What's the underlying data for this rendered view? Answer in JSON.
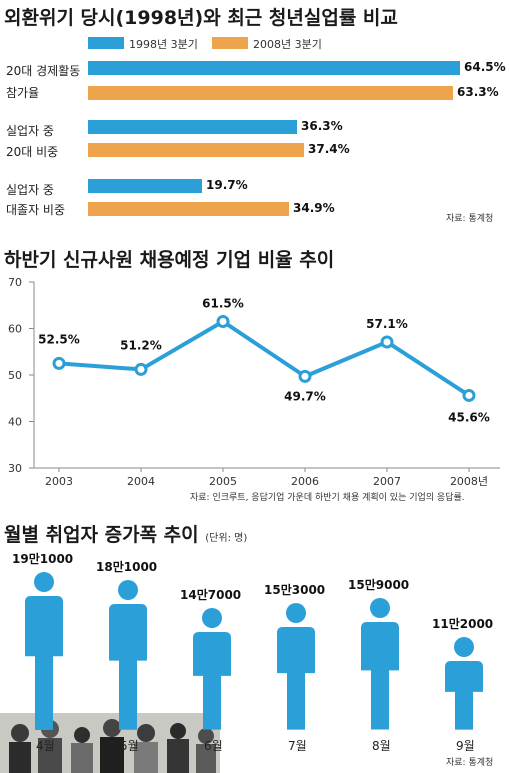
{
  "colors": {
    "series1998": "#2a9fd8",
    "series2008": "#eda44d",
    "line": "#2a9fd8",
    "person": "#2a9fd8"
  },
  "chart_data": [
    {
      "type": "bar",
      "orientation": "horizontal",
      "title": "외환위기 당시(1998년)와 최근 청년실업률 비교",
      "legend": [
        "1998년 3분기",
        "2008년 3분기"
      ],
      "categories": [
        {
          "line1": "20대 경제활동",
          "line2": "참가율"
        },
        {
          "line1": "실업자 중",
          "line2": "20대 비중"
        },
        {
          "line1": "실업자 중",
          "line2": "대졸자 비중"
        }
      ],
      "series": [
        {
          "name": "1998년 3분기",
          "values": [
            64.5,
            36.3,
            19.7
          ],
          "labels": [
            "64.5%",
            "36.3%",
            "19.7%"
          ]
        },
        {
          "name": "2008년 3분기",
          "values": [
            63.3,
            37.4,
            34.9
          ],
          "labels": [
            "63.3%",
            "37.4%",
            "34.9%"
          ]
        }
      ],
      "xlim": [
        0,
        64.5
      ],
      "source": "자료: 통계청"
    },
    {
      "type": "line",
      "title": "하반기 신규사원 채용예정 기업 비율 추이",
      "x": [
        "2003",
        "2004",
        "2005",
        "2006",
        "2007",
        "2008년"
      ],
      "y": [
        52.5,
        51.2,
        61.5,
        49.7,
        57.1,
        45.6
      ],
      "labels": [
        "52.5%",
        "51.2%",
        "61.5%",
        "49.7%",
        "57.1%",
        "45.6%"
      ],
      "yticks": [
        "30",
        "40",
        "50",
        "60",
        "70"
      ],
      "ylim": [
        30,
        70
      ],
      "grid": false,
      "source": "자료: 인크루트, 응답기업 가운데 하반기 채용 계획이 있는 기업의 응답률."
    },
    {
      "type": "bar",
      "style": "pictogram",
      "title": "월별 취업자 증가폭 추이",
      "unit": "(단위: 명)",
      "categories": [
        "4월",
        "5월",
        "6월",
        "7월",
        "8월",
        "9월"
      ],
      "values": [
        191000,
        181000,
        147000,
        153000,
        159000,
        112000
      ],
      "labels": [
        "19만1000",
        "18만1000",
        "14만7000",
        "15만3000",
        "15만9000",
        "11만2000"
      ],
      "source": "자료: 통계청"
    }
  ]
}
